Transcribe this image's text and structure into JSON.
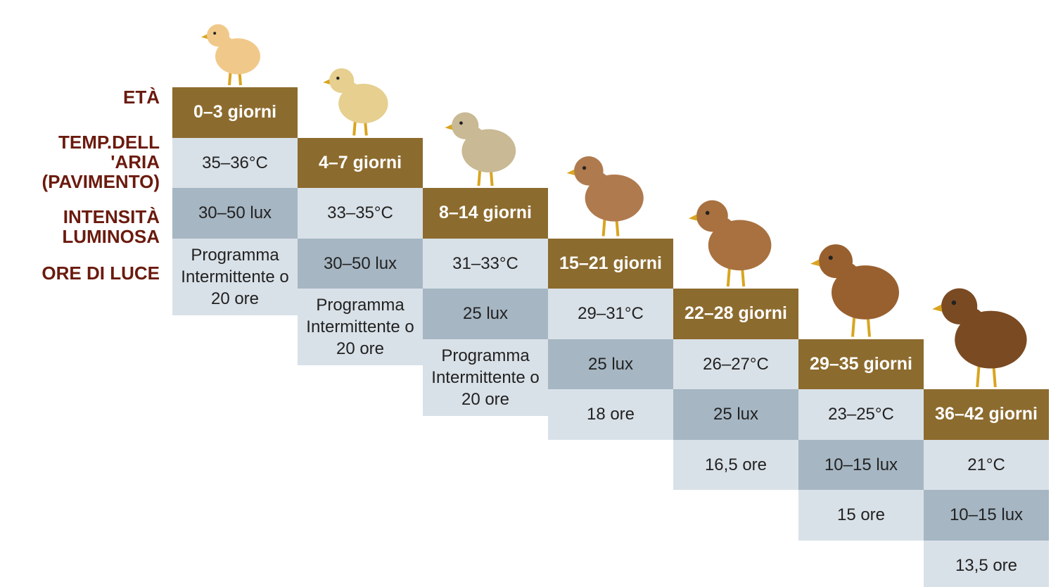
{
  "row_labels": [
    [
      "ETÀ"
    ],
    [
      "TEMP.DELL",
      "'ARIA",
      "(PAVIMENTO)"
    ],
    [
      "INTENSITÀ",
      "LUMINOSA"
    ],
    [
      "ORE DI LUCE"
    ]
  ],
  "columns": [
    {
      "age": "0–3 giorni",
      "temp": "35–36°C",
      "lux": "30–50 lux",
      "hours": "Programma Intermittente o 20 ore"
    },
    {
      "age": "4–7 giorni",
      "temp": "33–35°C",
      "lux": "30–50 lux",
      "hours": "Programma Intermittente o 20 ore"
    },
    {
      "age": "8–14 giorni",
      "temp": "31–33°C",
      "lux": "25 lux",
      "hours": "Programma Intermittente o 20 ore"
    },
    {
      "age": "15–21 giorni",
      "temp": "29–31°C",
      "lux": "25 lux",
      "hours": "18 ore"
    },
    {
      "age": "22–28 giorni",
      "temp": "26–27°C",
      "lux": "25 lux",
      "hours": "16,5 ore"
    },
    {
      "age": "29–35 giorni",
      "temp": "23–25°C",
      "lux": "10–15 lux",
      "hours": "15 ore"
    },
    {
      "age": "36–42 giorni",
      "temp": "21°C",
      "lux": "10–15 lux",
      "hours": "13,5 ore"
    }
  ]
}
